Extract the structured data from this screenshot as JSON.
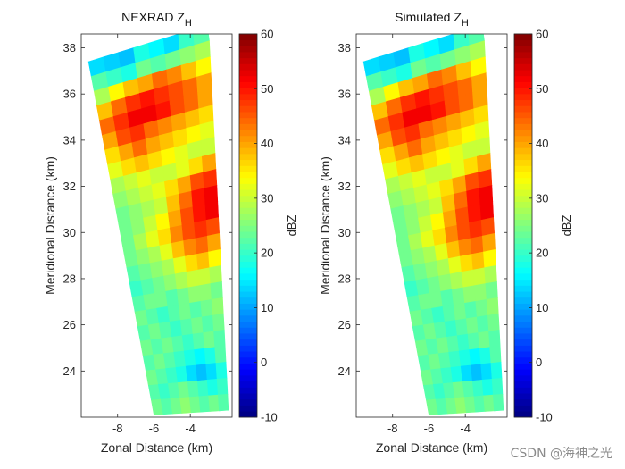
{
  "chart_data": [
    {
      "type": "heatmap",
      "title": "NEXRAD Z",
      "title_subscript": "H",
      "xlabel": "Zonal Distance (km)",
      "ylabel": "Meridional Distance (km)",
      "xlim": [
        -10,
        -1.7
      ],
      "ylim": [
        22,
        38.6
      ],
      "xticks": [
        -8,
        -6,
        -4
      ],
      "yticks": [
        24,
        26,
        28,
        30,
        32,
        34,
        36,
        38
      ],
      "colorbar": {
        "label": "dBZ",
        "range": [
          -10,
          60
        ],
        "ticks": [
          -10,
          0,
          10,
          20,
          30,
          40,
          50,
          60
        ],
        "colormap": "jet"
      },
      "grid": false,
      "field": {
        "description_of_values": "radar reflectivity in dBZ, by range band (rows) and beam (columns)",
        "rows_count_from_top": 24,
        "cols_count": 8,
        "y_top_km": 37.4,
        "y_bottom_km": 22.4,
        "values": [
          [
            14,
            13,
            12,
            18,
            16,
            14,
            20,
            22
          ],
          [
            22,
            20,
            18,
            24,
            22,
            24,
            26,
            28
          ],
          [
            28,
            34,
            38,
            40,
            44,
            42,
            38,
            34
          ],
          [
            38,
            44,
            48,
            50,
            48,
            46,
            44,
            40
          ],
          [
            44,
            48,
            52,
            52,
            50,
            46,
            44,
            40
          ],
          [
            40,
            46,
            48,
            44,
            42,
            40,
            38,
            36
          ],
          [
            36,
            40,
            44,
            40,
            38,
            36,
            34,
            32
          ],
          [
            32,
            36,
            38,
            36,
            34,
            32,
            30,
            30
          ],
          [
            28,
            30,
            32,
            30,
            30,
            32,
            36,
            40
          ],
          [
            26,
            28,
            30,
            32,
            36,
            40,
            46,
            48
          ],
          [
            24,
            26,
            28,
            30,
            38,
            44,
            50,
            52
          ],
          [
            24,
            26,
            30,
            34,
            40,
            46,
            50,
            52
          ],
          [
            24,
            28,
            32,
            36,
            42,
            46,
            48,
            46
          ],
          [
            24,
            26,
            28,
            32,
            38,
            42,
            44,
            40
          ],
          [
            22,
            24,
            26,
            28,
            32,
            36,
            38,
            34
          ],
          [
            20,
            22,
            24,
            26,
            28,
            30,
            30,
            28
          ],
          [
            22,
            24,
            24,
            22,
            24,
            26,
            26,
            24
          ],
          [
            24,
            22,
            20,
            22,
            24,
            22,
            24,
            26
          ],
          [
            22,
            24,
            22,
            20,
            22,
            24,
            22,
            24
          ],
          [
            24,
            22,
            24,
            22,
            20,
            22,
            24,
            22
          ],
          [
            22,
            24,
            22,
            20,
            18,
            16,
            18,
            22
          ],
          [
            24,
            22,
            20,
            18,
            14,
            12,
            14,
            18
          ],
          [
            22,
            20,
            22,
            24,
            22,
            20,
            18,
            20
          ],
          [
            24,
            22,
            24,
            26,
            24,
            22,
            24,
            22
          ]
        ]
      }
    },
    {
      "type": "heatmap",
      "title": "Simulated Z",
      "title_subscript": "H",
      "xlabel": "Zonal Distance (km)",
      "ylabel": "Meridional Distance (km)",
      "xlim": [
        -10,
        -1.7
      ],
      "ylim": [
        22,
        38.6
      ],
      "xticks": [
        -8,
        -6,
        -4
      ],
      "yticks": [
        24,
        26,
        28,
        30,
        32,
        34,
        36,
        38
      ],
      "colorbar": {
        "label": "dBZ",
        "range": [
          -10,
          60
        ],
        "ticks": [
          -10,
          0,
          10,
          20,
          30,
          40,
          50,
          60
        ],
        "colormap": "jet"
      },
      "grid": false,
      "field": {
        "same_as_panel": 0
      }
    }
  ],
  "watermark": "CSDN @海神之光"
}
